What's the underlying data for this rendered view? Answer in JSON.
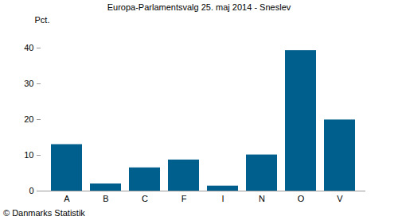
{
  "chart_data": {
    "type": "bar",
    "title": "Europa-Parlamentsvalg 25. maj 2014 - Sneslev",
    "y_label": "Pct.",
    "caption": "© Danmarks Statistik",
    "categories": [
      "A",
      "B",
      "C",
      "F",
      "I",
      "N",
      "O",
      "V"
    ],
    "values": [
      13.0,
      2.0,
      6.5,
      8.7,
      1.4,
      10.1,
      39.3,
      19.9
    ],
    "color": "#005f8c",
    "ylim": [
      0,
      40
    ],
    "yticks": [
      0,
      10,
      20,
      30,
      40
    ],
    "grid": false
  }
}
